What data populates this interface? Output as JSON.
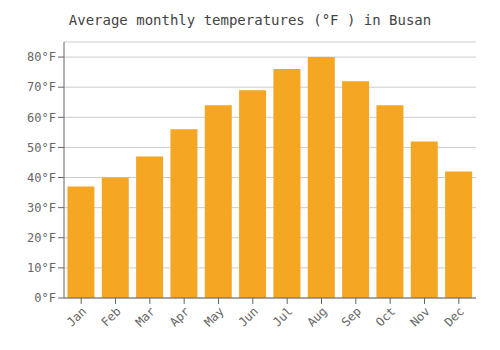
{
  "chart_data": {
    "type": "bar",
    "title": "Average monthly temperatures (°F ) in Busan",
    "categories": [
      "Jan",
      "Feb",
      "Mar",
      "Apr",
      "May",
      "Jun",
      "Jul",
      "Aug",
      "Sep",
      "Oct",
      "Nov",
      "Dec"
    ],
    "values": [
      37,
      40,
      47,
      56,
      64,
      69,
      76,
      80,
      72,
      64,
      52,
      42
    ],
    "color": "#F5A623",
    "ylim": [
      0,
      85
    ],
    "yticks": [
      {
        "value": 0,
        "label": "0°F"
      },
      {
        "value": 10,
        "label": "10°F"
      },
      {
        "value": 20,
        "label": "20°F"
      },
      {
        "value": 30,
        "label": "30°F"
      },
      {
        "value": 40,
        "label": "40°F"
      },
      {
        "value": 50,
        "label": "50°F"
      },
      {
        "value": 60,
        "label": "60°F"
      },
      {
        "value": 70,
        "label": "70°F"
      },
      {
        "value": 80,
        "label": "80°F"
      }
    ],
    "grid": true
  }
}
